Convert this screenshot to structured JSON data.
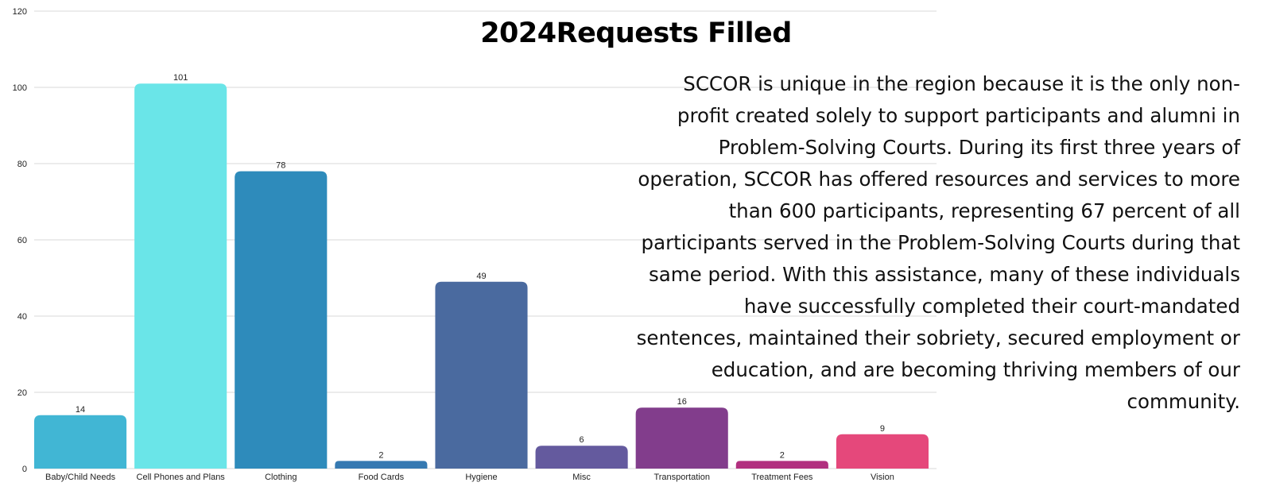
{
  "chart_data": {
    "type": "bar",
    "title": "2024Requests Filled",
    "categories": [
      "Baby/Child Needs",
      "Cell Phones and Plans",
      "Clothing",
      "Food Cards",
      "Hygiene",
      "Misc",
      "Transportation",
      "Treatment Fees",
      "Vision"
    ],
    "values": [
      14,
      101,
      78,
      2,
      49,
      6,
      16,
      2,
      9
    ],
    "colors": [
      "#41b6d4",
      "#6ae5e8",
      "#2e8bbb",
      "#3579b1",
      "#4a6a9f",
      "#645a9e",
      "#823d8c",
      "#b1307f",
      "#e5487b"
    ],
    "ylim": [
      0,
      120
    ],
    "yticks": [
      0,
      20,
      40,
      60,
      80,
      100,
      120
    ],
    "grid": true,
    "xlabel": "",
    "ylabel": ""
  },
  "description": "SCCOR is unique in the region because it is the only non-profit created solely to support participants and alumni in Problem-Solving Courts. During its first three years of operation, SCCOR has offered resources and services to more than 600 participants, representing 67 percent of all participants served in the Problem-Solving Courts during that same period. With this assistance, many of these individuals have successfully completed their court-mandated sentences, maintained their sobriety, secured employment or education, and are becoming thriving members of our community."
}
